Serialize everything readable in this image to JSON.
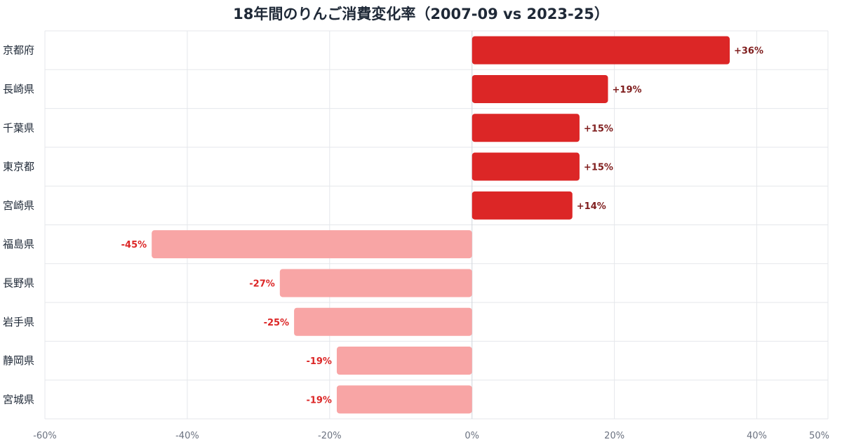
{
  "chart_data": {
    "type": "bar",
    "orientation": "horizontal",
    "title": "18年間のりんご消費変化率（2007-09 vs 2023-25）",
    "categories": [
      "京都府",
      "長崎県",
      "千葉県",
      "東京都",
      "宮崎県",
      "福島県",
      "長野県",
      "岩手県",
      "静岡県",
      "宮城県"
    ],
    "values": [
      36.2,
      19.1,
      15.1,
      15.1,
      14.1,
      -45.0,
      -27.0,
      -25.0,
      -19.0,
      -19.0
    ],
    "data_labels": [
      "+36%",
      "+19%",
      "+15%",
      "+15%",
      "+14%",
      "-45%",
      "-27%",
      "-25%",
      "-19%",
      "-19%"
    ],
    "xlim": [
      -60,
      50
    ],
    "x_ticks": [
      -60,
      -40,
      -20,
      0,
      20,
      40,
      50
    ],
    "x_tick_labels": [
      "-60%",
      "-40%",
      "-20%",
      "0%",
      "20%",
      "40%",
      "50%"
    ],
    "xlabel": "",
    "ylabel": "",
    "grid": true,
    "legend": "none",
    "colors": {
      "positive_bar": "#dc2626",
      "negative_bar": "#f8a5a5",
      "positive_label": "#7f1d1d",
      "negative_label": "#dc2626",
      "grid": "#e5e7eb",
      "zero_line": "#d1d5db"
    }
  }
}
